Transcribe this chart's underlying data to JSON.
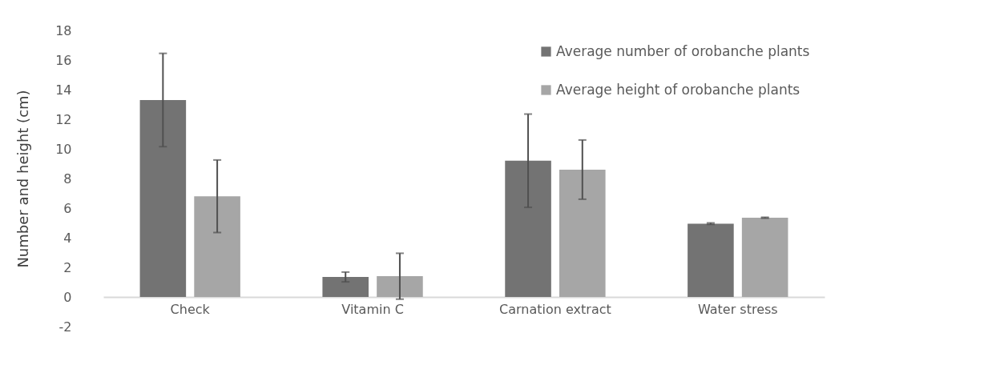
{
  "chart_data": {
    "type": "bar",
    "ylabel": "Number and height (cm)",
    "categories": [
      "Check",
      "Vitamin C",
      "Carnation extract",
      "Water stress"
    ],
    "series": [
      {
        "name": "Average number of orobanche plants",
        "color": "#737373",
        "values": [
          13.3,
          1.35,
          9.2,
          4.95
        ],
        "errors": [
          3.15,
          0.33,
          3.15,
          0.05
        ]
      },
      {
        "name": "Average height of orobanche plants",
        "color": "#a6a6a6",
        "values": [
          6.8,
          1.4,
          8.6,
          5.35
        ],
        "errors": [
          2.45,
          1.55,
          2.0,
          0.03
        ]
      }
    ],
    "ylim": [
      -2,
      18
    ],
    "yticks": [
      -2,
      0,
      2,
      4,
      6,
      8,
      10,
      12,
      14,
      16,
      18
    ],
    "grid": false,
    "legend": "top right"
  }
}
